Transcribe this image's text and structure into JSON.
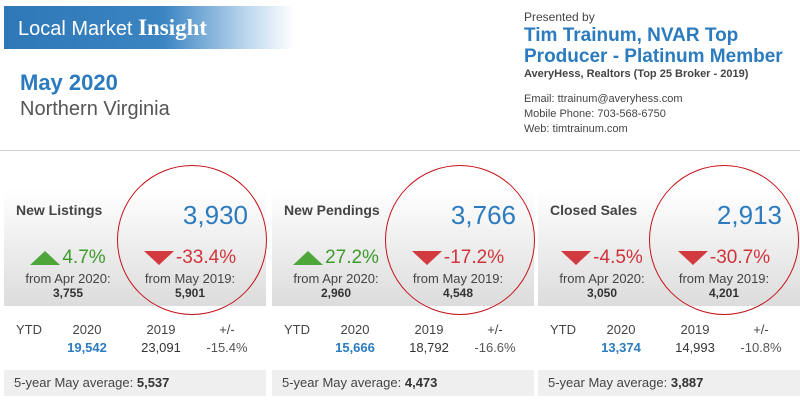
{
  "banner": {
    "title_regular": "Local Market",
    "title_bold": "Insight"
  },
  "period": "May 2020",
  "region": "Northern Virginia",
  "presenter": {
    "presented_by": "Presented by",
    "name": "Tim Trainum, NVAR Top Producer - Platinum Member",
    "brokerage": "AveryHess, Realtors (Top 25 Broker - 2019)",
    "email": "Email: ttrainum@averyhess.com",
    "phone": "Mobile Phone: 703-568-6750",
    "web": "Web: timtrainum.com"
  },
  "colors": {
    "accent_blue": "#2c7bbf",
    "up_green": "#3e9a2b",
    "down_red": "#d0343b",
    "circle_red": "#c4141a"
  },
  "ytd_headers": {
    "label": "YTD",
    "current_year": "2020",
    "prior_year": "2019",
    "change": "+/-"
  },
  "avg_label": "5-year May average:",
  "panels": [
    {
      "name": "New Listings",
      "value": "3,930",
      "monthly": {
        "pct": "4.7%",
        "direction": "up",
        "from_label": "from Apr 2020:",
        "from_value": "3,755"
      },
      "yearly": {
        "pct": "-33.4%",
        "direction": "down",
        "from_label": "from May 2019:",
        "from_value": "5,901"
      },
      "ytd": {
        "current": "19,542",
        "prior": "23,091",
        "change": "-15.4%"
      },
      "avg": "5,537"
    },
    {
      "name": "New Pendings",
      "value": "3,766",
      "monthly": {
        "pct": "27.2%",
        "direction": "up",
        "from_label": "from Apr 2020:",
        "from_value": "2,960"
      },
      "yearly": {
        "pct": "-17.2%",
        "direction": "down",
        "from_label": "from May 2019:",
        "from_value": "4,548"
      },
      "ytd": {
        "current": "15,666",
        "prior": "18,792",
        "change": "-16.6%"
      },
      "avg": "4,473"
    },
    {
      "name": "Closed Sales",
      "value": "2,913",
      "monthly": {
        "pct": "-4.5%",
        "direction": "down",
        "from_label": "from Apr 2020:",
        "from_value": "3,050"
      },
      "yearly": {
        "pct": "-30.7%",
        "direction": "down",
        "from_label": "from May 2019:",
        "from_value": "4,201"
      },
      "ytd": {
        "current": "13,374",
        "prior": "14,993",
        "change": "-10.8%"
      },
      "avg": "3,887"
    }
  ]
}
